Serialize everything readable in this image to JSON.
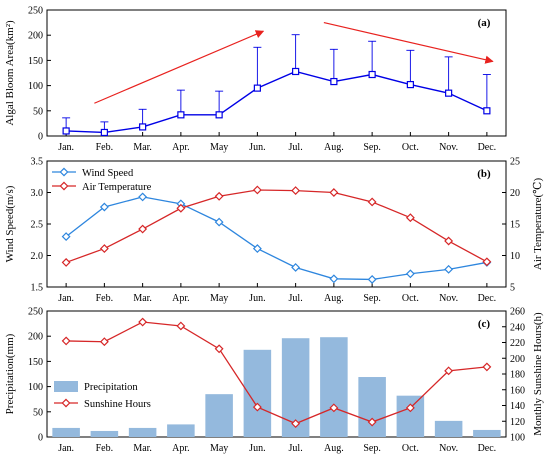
{
  "colors": {
    "bloom": "#0000e6",
    "arrow": "#e8221f",
    "wind": "#2e86de",
    "temp": "#d62728",
    "precip_bar": "#94b9dd",
    "sunshine": "#d62728"
  },
  "chart_data": [
    {
      "panel_label": "(a)",
      "type": "line",
      "categories": [
        "Jan.",
        "Feb.",
        "Mar.",
        "Apr.",
        "May",
        "Jun.",
        "Jul.",
        "Aug.",
        "Sep.",
        "Oct.",
        "Nov.",
        "Dec."
      ],
      "ylabel": "Algal Bloom Area(km²)",
      "ylim": [
        0,
        250
      ],
      "yticks": [
        0,
        50,
        100,
        150,
        200,
        250
      ],
      "series": [
        {
          "values": [
            10,
            7,
            18,
            42,
            42,
            95,
            128,
            108,
            122,
            102,
            85,
            50
          ],
          "error_upper": [
            36,
            28,
            53,
            91,
            89,
            176,
            201,
            172,
            188,
            170,
            157,
            122
          ],
          "marker": "square"
        }
      ],
      "annotations": [
        {
          "type": "arrow",
          "from": {
            "x": "Feb.",
            "y": 65
          },
          "to": {
            "x": "Jun.",
            "y": 208
          },
          "trend": "increasing"
        },
        {
          "type": "arrow",
          "from": {
            "x": "Aug.",
            "y": 225
          },
          "to": {
            "x": "Dec.",
            "y": 148
          },
          "trend": "decreasing"
        }
      ]
    },
    {
      "panel_label": "(b)",
      "type": "line",
      "categories": [
        "Jan.",
        "Feb.",
        "Mar.",
        "Apr.",
        "May",
        "Jun.",
        "Jul.",
        "Aug.",
        "Sep.",
        "Oct.",
        "Nov.",
        "Dec."
      ],
      "ylabel": "Wind Speed(m/s)",
      "ylim": [
        1.5,
        3.5
      ],
      "yticks": [
        1.5,
        2.0,
        2.5,
        3.0,
        3.5
      ],
      "y2label": "Air Temperature(℃)",
      "y2lim": [
        5,
        25
      ],
      "y2ticks": [
        5,
        10,
        15,
        20,
        25
      ],
      "legend": "top-left",
      "series": [
        {
          "name": "Wind Speed",
          "axis": "left",
          "marker": "diamond",
          "values": [
            2.3,
            2.77,
            2.93,
            2.82,
            2.53,
            2.11,
            1.81,
            1.63,
            1.62,
            1.71,
            1.78,
            1.89
          ]
        },
        {
          "name": "Air Temperature",
          "axis": "right",
          "marker": "diamond",
          "values": [
            8.9,
            11.1,
            14.2,
            17.5,
            19.4,
            20.4,
            20.3,
            20.0,
            18.5,
            16.0,
            12.3,
            9.0
          ]
        }
      ]
    },
    {
      "panel_label": "(c)",
      "type": "bar",
      "categories": [
        "Jan.",
        "Feb.",
        "Mar.",
        "Apr.",
        "May",
        "Jun.",
        "Jul.",
        "Aug.",
        "Sep.",
        "Oct.",
        "Nov.",
        "Dec."
      ],
      "ylabel": "Precipitation(mm)",
      "ylim": [
        0,
        250
      ],
      "yticks": [
        0,
        50,
        100,
        150,
        200,
        250
      ],
      "y2label": "Monthly Sunshine Hours(h)",
      "y2lim": [
        100,
        260
      ],
      "y2ticks": [
        100,
        120,
        140,
        160,
        180,
        200,
        220,
        240,
        260
      ],
      "legend": "bottom-left",
      "series": [
        {
          "name": "Precipitation",
          "axis": "left",
          "kind": "bar",
          "values": [
            18,
            12,
            18,
            25,
            85,
            173,
            196,
            198,
            119,
            82,
            32,
            14
          ]
        },
        {
          "name": "Sunshine Hours",
          "axis": "right",
          "kind": "line",
          "marker": "diamond",
          "values": [
            222,
            221,
            246,
            241,
            212,
            138,
            117,
            137,
            119,
            137,
            184,
            189
          ]
        }
      ]
    }
  ]
}
